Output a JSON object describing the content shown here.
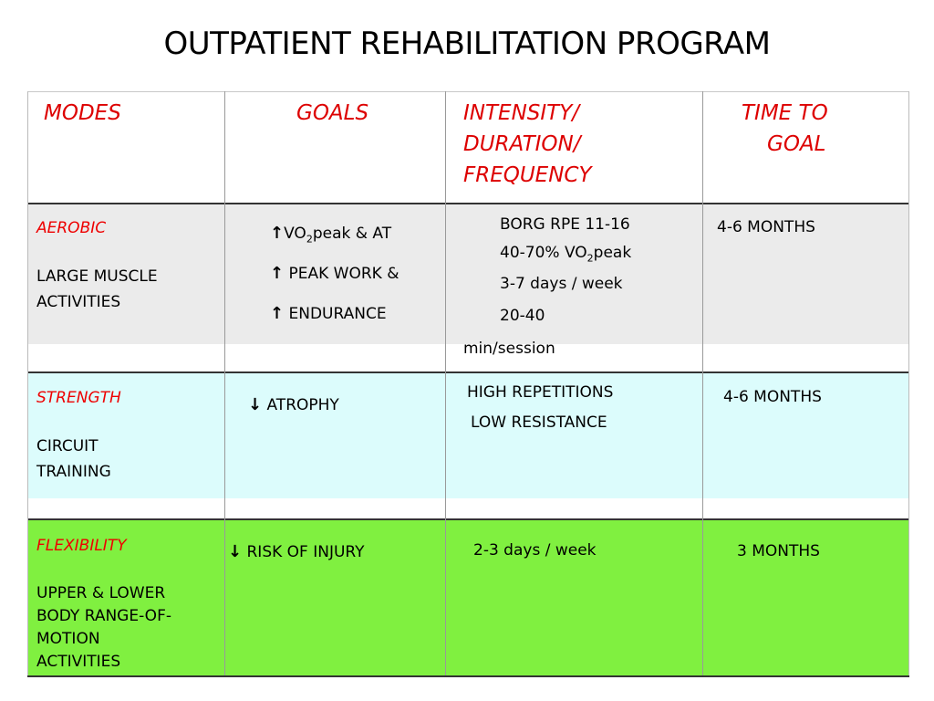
{
  "title": "OUTPATIENT REHABILITATION PROGRAM",
  "headers": {
    "modes": "MODES",
    "goals": "GOALS",
    "intensity": [
      "INTENSITY/",
      "DURATION/",
      "FREQUENCY"
    ],
    "time": [
      "TIME TO",
      "GOAL"
    ]
  },
  "rows": [
    {
      "category": "AEROBIC",
      "mode": [
        "LARGE MUSCLE",
        "ACTIVITIES"
      ],
      "goals": [
        {
          "icon": "arrow-up",
          "pre": "VO",
          "sub": "2",
          "post": "peak & AT"
        },
        {
          "icon": "arrow-up",
          "text": " PEAK WORK &"
        },
        {
          "icon": "arrow-up",
          "text": " ENDURANCE"
        }
      ],
      "intensity": {
        "line1": "BORG RPE 11-16",
        "line2_pre": "40-70% VO",
        "line2_sub": "2",
        "line2_post": "peak",
        "line3": "3-7 days / week",
        "line4": "20-40",
        "line5": "min/session"
      },
      "time": "4-6 MONTHS",
      "color": "#ebebeb"
    },
    {
      "category": "STRENGTH",
      "mode": [
        "CIRCUIT",
        "TRAINING"
      ],
      "goals": [
        {
          "icon": "arrow-down",
          "text": " ATROPHY"
        }
      ],
      "intensity": [
        "HIGH REPETITIONS",
        "LOW RESISTANCE"
      ],
      "time": "4-6 MONTHS",
      "color": "#dcfcfc"
    },
    {
      "category": "FLEXIBILITY",
      "mode": [
        "UPPER & LOWER",
        "BODY RANGE-OF-",
        "MOTION",
        "ACTIVITIES"
      ],
      "goals": [
        {
          "icon": "arrow-down",
          "text": " RISK OF INJURY"
        }
      ],
      "intensity": [
        "2-3 days / week"
      ],
      "time": "3 MONTHS",
      "color": "#80f040"
    }
  ]
}
